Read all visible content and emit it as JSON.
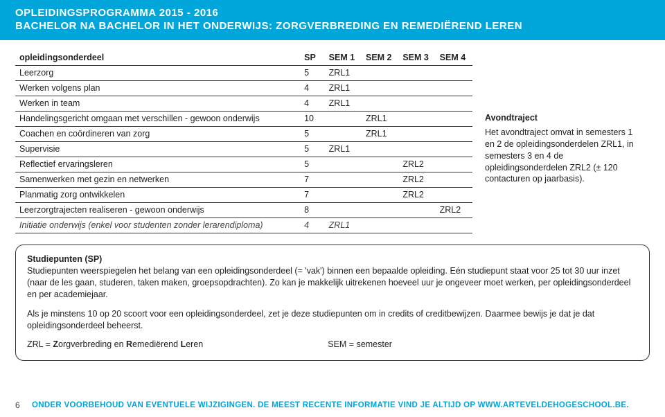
{
  "header": {
    "line1": "OPLEIDINGSPROGRAMMA 2015 - 2016",
    "line2": "BACHELOR NA BACHELOR IN HET ONDERWIJS: ZORGVERBREDING EN REMEDIËREND LEREN"
  },
  "table": {
    "columns": [
      "opleidingsonderdeel",
      "SP",
      "SEM 1",
      "SEM 2",
      "SEM 3",
      "SEM 4"
    ],
    "rows": [
      {
        "name": "Leerzorg",
        "sp": "5",
        "sem1": "ZRL1",
        "sem2": "",
        "sem3": "",
        "sem4": "",
        "italic": false
      },
      {
        "name": "Werken volgens plan",
        "sp": "4",
        "sem1": "ZRL1",
        "sem2": "",
        "sem3": "",
        "sem4": "",
        "italic": false
      },
      {
        "name": "Werken in team",
        "sp": "4",
        "sem1": "ZRL1",
        "sem2": "",
        "sem3": "",
        "sem4": "",
        "italic": false
      },
      {
        "name": "Handelingsgericht omgaan met verschillen - gewoon onderwijs",
        "sp": "10",
        "sem1": "",
        "sem2": "ZRL1",
        "sem3": "",
        "sem4": "",
        "italic": false
      },
      {
        "name": "Coachen en coördineren van zorg",
        "sp": "5",
        "sem1": "",
        "sem2": "ZRL1",
        "sem3": "",
        "sem4": "",
        "italic": false
      },
      {
        "name": "Supervisie",
        "sp": "5",
        "sem1": "ZRL1",
        "sem2": "",
        "sem3": "",
        "sem4": "",
        "italic": false
      },
      {
        "name": "Reflectief ervaringsleren",
        "sp": "5",
        "sem1": "",
        "sem2": "",
        "sem3": "ZRL2",
        "sem4": "",
        "italic": false
      },
      {
        "name": "Samenwerken met gezin en netwerken",
        "sp": "7",
        "sem1": "",
        "sem2": "",
        "sem3": "ZRL2",
        "sem4": "",
        "italic": false
      },
      {
        "name": "Planmatig zorg ontwikkelen",
        "sp": "7",
        "sem1": "",
        "sem2": "",
        "sem3": "ZRL2",
        "sem4": "",
        "italic": false
      },
      {
        "name": "Leerzorgtrajecten realiseren - gewoon onderwijs",
        "sp": "8",
        "sem1": "",
        "sem2": "",
        "sem3": "",
        "sem4": "ZRL2",
        "italic": false
      },
      {
        "name": "Initiatie onderwijs (enkel voor studenten zonder lerarendiploma)",
        "sp": "4",
        "sem1": "ZRL1",
        "sem2": "",
        "sem3": "",
        "sem4": "",
        "italic": true
      }
    ]
  },
  "side": {
    "title": "Avondtraject",
    "body": "Het avondtraject omvat in semesters 1 en 2 de opleidingsonderdelen ZRL1, in semesters 3 en 4 de opleidingsonderdelen ZRL2 (± 120 contacturen op jaarbasis)."
  },
  "info": {
    "sp_title": "Studiepunten (SP)",
    "p1": "Studiepunten weerspiegelen het belang van een opleidingsonderdeel (= 'vak') binnen een bepaalde opleiding. Eén studiepunt staat voor 25 tot 30 uur inzet (naar de les gaan, studeren, taken maken, groepsopdrachten). Zo kan je makkelijk uitrekenen hoeveel uur je ongeveer moet werken, per opleidingsonderdeel en per academiejaar.",
    "p2": "Als je minstens 10 op 20 scoort voor een opleidingsonderdeel, zet je deze studiepunten om in credits of creditbewijzen. Daarmee bewijs je dat je dat opleidingsonderdeel beheerst.",
    "abbrev_zrl_pre": "ZRL = ",
    "abbrev_zrl_z": "Z",
    "abbrev_zrl_mid1": "orgverbreding en ",
    "abbrev_zrl_r": "R",
    "abbrev_zrl_mid2": "emediërend ",
    "abbrev_zrl_l": "L",
    "abbrev_zrl_end": "eren",
    "abbrev_sem": "SEM = semester"
  },
  "footer": {
    "page": "6",
    "disclaimer": "ONDER VOORBEHOUD VAN EVENTUELE WIJZIGINGEN. DE MEEST RECENTE INFORMATIE VIND JE ALTIJD OP WWW.ARTEVELDEHOGESCHOOL.BE."
  },
  "colors": {
    "brand": "#00a5d9",
    "text": "#222222",
    "border": "#333333"
  }
}
